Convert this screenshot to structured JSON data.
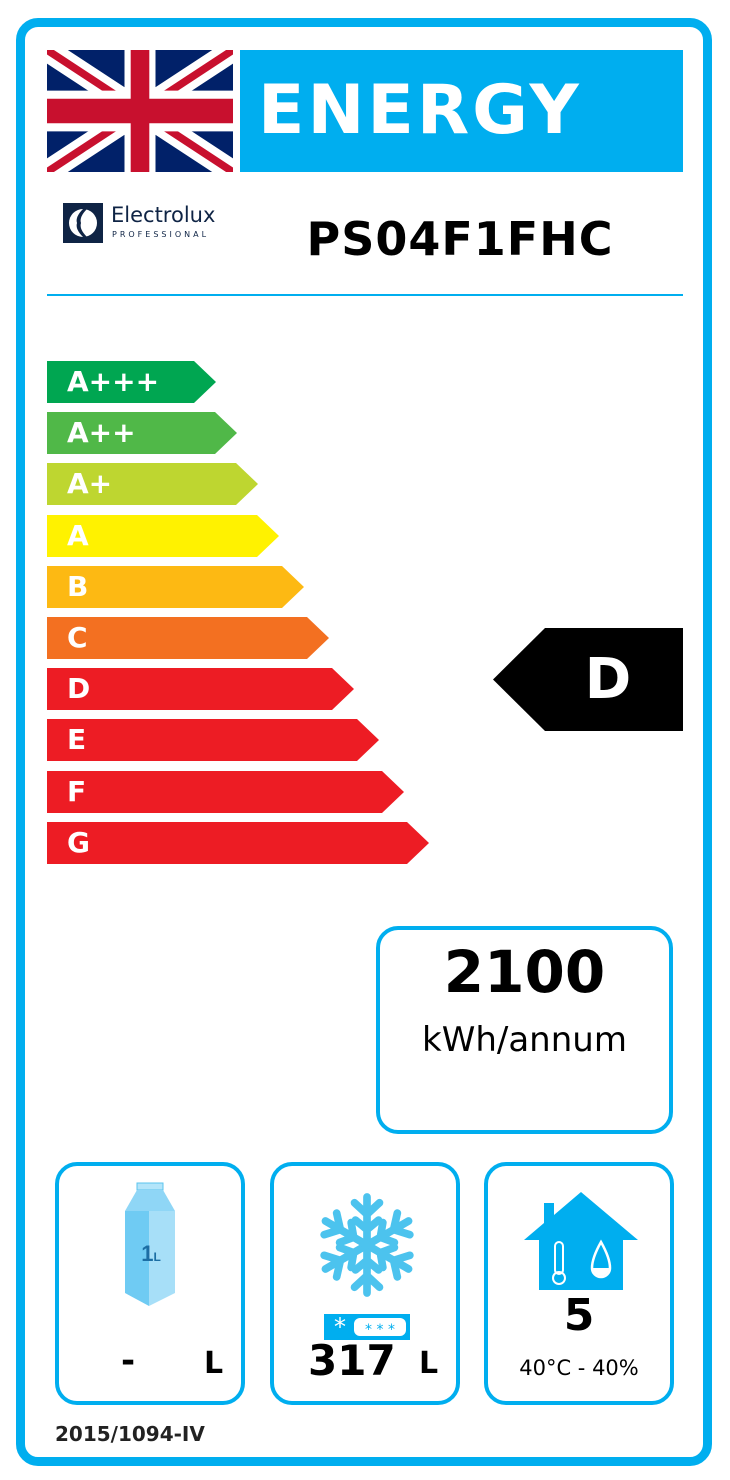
{
  "header": {
    "title": "ENERGY",
    "flag_icon": "union-jack-flag-icon",
    "brand": "Electrolux",
    "brand_sub": "PROFESSIONAL",
    "model": "PS04F1FHC"
  },
  "scale": {
    "classes": [
      {
        "label": "A+++",
        "color": "#00A651"
      },
      {
        "label": "A++",
        "color": "#50B848"
      },
      {
        "label": "A+",
        "color": "#BED630"
      },
      {
        "label": "A",
        "color": "#FFF200"
      },
      {
        "label": "B",
        "color": "#FDB913"
      },
      {
        "label": "C",
        "color": "#F37021"
      },
      {
        "label": "D",
        "color": "#ED1C24"
      },
      {
        "label": "E",
        "color": "#ED1C24"
      },
      {
        "label": "F",
        "color": "#ED1C24"
      },
      {
        "label": "G",
        "color": "#ED1C24"
      }
    ],
    "rating": "D"
  },
  "consumption": {
    "value": "2100",
    "unit": "kWh/annum"
  },
  "chilled": {
    "icon": "milk-carton-icon",
    "icon_text": "1L",
    "value": "-",
    "unit": "L"
  },
  "frozen": {
    "icon": "snowflake-icon",
    "value": "317",
    "unit": "L"
  },
  "climate": {
    "icon": "house-thermometer-drop-icon",
    "class": "5",
    "condition": "40°C - 40%"
  },
  "footer": {
    "regulation": "2015/1094-IV"
  },
  "accent_color": "#00AEEF"
}
